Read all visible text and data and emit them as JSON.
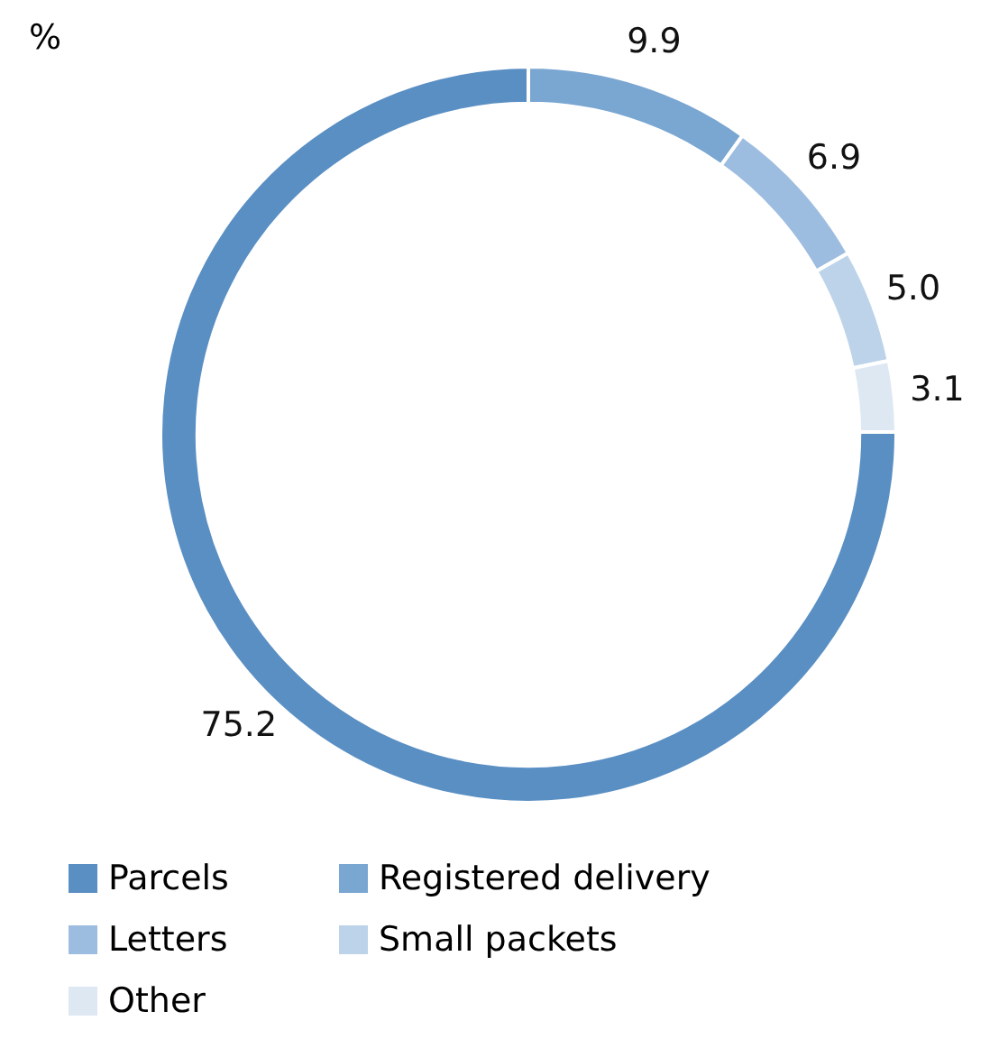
{
  "chart_data": {
    "type": "donut",
    "title": "%",
    "categories": [
      "Parcels",
      "Registered delivery",
      "Letters",
      "Small packets",
      "Other"
    ],
    "values": [
      75.2,
      9.9,
      6.9,
      5.0,
      3.1
    ],
    "colors": [
      "#5a8fc3",
      "#7aa6d2",
      "#9dbde0",
      "#bcd3ea",
      "#dde8f3"
    ],
    "value_labels": [
      "75.2",
      "9.9",
      "6.9",
      "5.0",
      "3.1"
    ],
    "legend": "bottom"
  }
}
